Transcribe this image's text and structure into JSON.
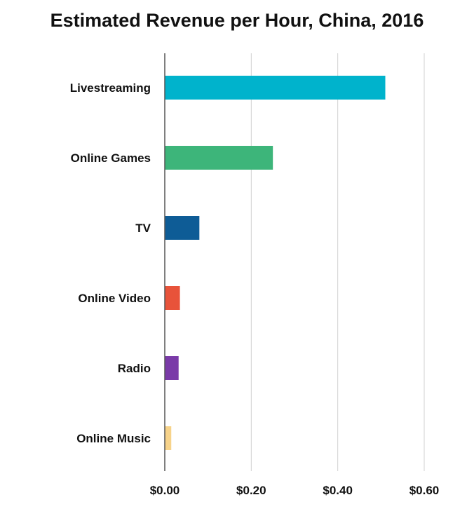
{
  "chart_data": {
    "type": "bar",
    "orientation": "horizontal",
    "title": "Estimated Revenue per Hour, China, 2016",
    "xlabel": "",
    "ylabel": "",
    "categories": [
      "Livestreaming",
      "Online Games",
      "TV",
      "Online Video",
      "Radio",
      "Online Music"
    ],
    "values": [
      0.51,
      0.25,
      0.08,
      0.035,
      0.032,
      0.015
    ],
    "colors": [
      "#00b3cc",
      "#3db57a",
      "#0e5c96",
      "#e8533a",
      "#7a3aa8",
      "#f7d38a"
    ],
    "xlim": [
      0,
      0.6
    ],
    "xticks": [
      0,
      0.2,
      0.4,
      0.6
    ],
    "xtick_labels": [
      "$0.00",
      "$0.20",
      "$0.40",
      "$0.60"
    ],
    "grid": "vertical",
    "legend": "none"
  }
}
